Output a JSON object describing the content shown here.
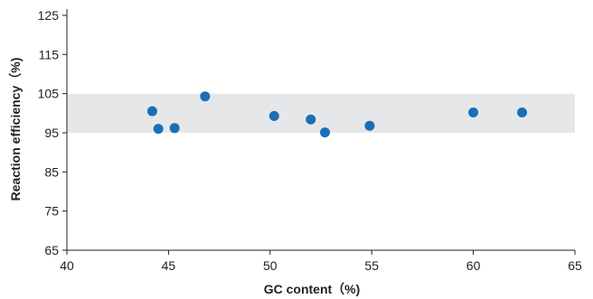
{
  "chart_data": {
    "type": "scatter",
    "xlabel": "GC content（%)",
    "ylabel": "Reaction efficiency（%)",
    "xlim": [
      40,
      65
    ],
    "ylim": [
      65,
      125
    ],
    "xticks": [
      "40",
      "45",
      "50",
      "55",
      "60",
      "65"
    ],
    "yticks": [
      "65",
      "75",
      "85",
      "95",
      "105",
      "115",
      "125"
    ],
    "grid": false,
    "acceptable_band": [
      95,
      105
    ],
    "band_color": "#e6e7e8",
    "marker_color": "#1a6fb8",
    "axis_color": "#231f20",
    "series": [
      {
        "x": [
          44.2,
          44.5,
          45.3,
          46.8,
          50.2,
          52.0,
          52.7,
          54.9,
          60.0,
          62.4
        ],
        "y": [
          100.5,
          96.0,
          96.2,
          104.3,
          99.3,
          98.4,
          95.1,
          96.8,
          100.2,
          100.2
        ]
      }
    ]
  }
}
